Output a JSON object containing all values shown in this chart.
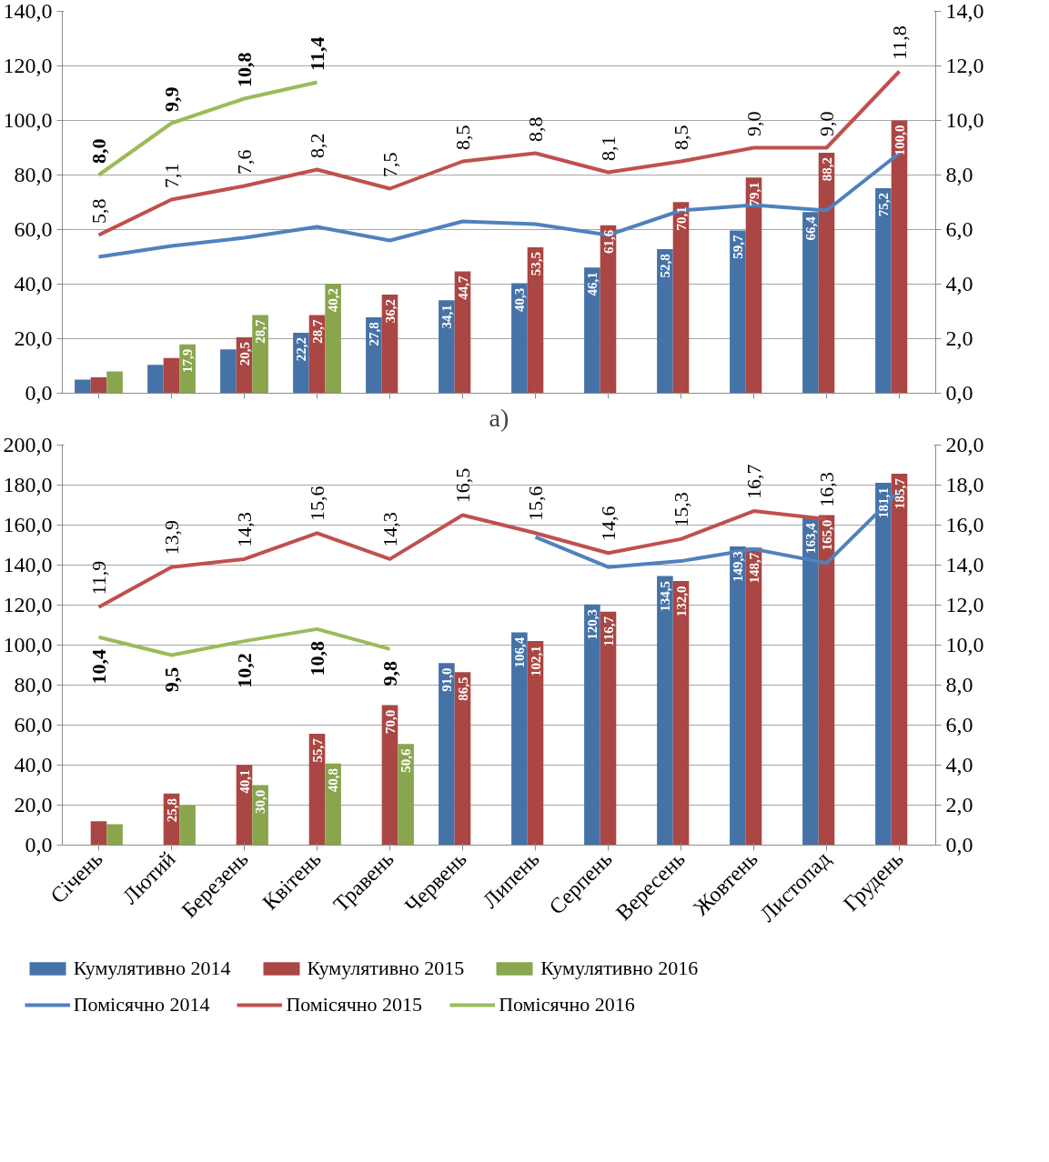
{
  "chart_data": [
    {
      "type": "bar",
      "xlabel": "a)",
      "categories": [
        null,
        null,
        null,
        null,
        null,
        null,
        null,
        null,
        null,
        null,
        null,
        null
      ],
      "tick_labels": "y",
      "grid": "y",
      "ylim": [
        0,
        140
      ],
      "yticks": [
        {
          "value": 0,
          "label": "0,0"
        },
        {
          "value": 20,
          "label": "20,0"
        },
        {
          "value": 40,
          "label": "40,0"
        },
        {
          "value": 60,
          "label": "60,0"
        },
        {
          "value": 80,
          "label": "80,0"
        },
        {
          "value": 100,
          "label": "100,0"
        },
        {
          "value": 120,
          "label": "120,0"
        },
        {
          "value": 140,
          "label": "140,0"
        }
      ],
      "y2lim": [
        0,
        14
      ],
      "y2ticks": [
        {
          "value": 0,
          "label": "0,0"
        },
        {
          "value": 2,
          "label": "2,0"
        },
        {
          "value": 4,
          "label": "4,0"
        },
        {
          "value": 6,
          "label": "6,0"
        },
        {
          "value": 8,
          "label": "8,0"
        },
        {
          "value": 10,
          "label": "10,0"
        },
        {
          "value": 12,
          "label": "12,0"
        },
        {
          "value": 14,
          "label": "14,0"
        }
      ],
      "series": [
        {
          "color": "#4572a7",
          "values": [
            5.0,
            10.4,
            16.1,
            22.2,
            27.8,
            34.1,
            40.3,
            46.1,
            52.8,
            59.7,
            66.4,
            75.2
          ],
          "value_labels": [
            null,
            null,
            null,
            "22,2",
            "27,8",
            "34,1",
            "40,3",
            "46,1",
            "52,8",
            "59,7",
            "66,4",
            "75,2"
          ]
        },
        {
          "color": "#aa4643",
          "values": [
            5.8,
            12.9,
            20.5,
            28.7,
            36.2,
            44.7,
            53.5,
            61.6,
            70.1,
            79.1,
            88.2,
            100.0
          ],
          "value_labels": [
            null,
            null,
            "20,5",
            "28,7",
            "36,2",
            "44,7",
            "53,5",
            "61,6",
            "70,1",
            "79,1",
            "88,2",
            "100,0"
          ]
        },
        {
          "color": "#89a54e",
          "values": [
            8.0,
            17.9,
            28.7,
            40.2,
            null,
            null,
            null,
            null,
            null,
            null,
            null,
            null
          ],
          "value_labels": [
            null,
            "17,9",
            "28,7",
            "40,2",
            null,
            null,
            null,
            null,
            null,
            null,
            null,
            null
          ]
        },
        {
          "type": "line",
          "axis": "y2",
          "color": "#4f81bd",
          "values": [
            5.0,
            5.4,
            5.7,
            6.1,
            5.6,
            6.3,
            6.2,
            5.8,
            6.7,
            6.9,
            6.7,
            8.8
          ]
        },
        {
          "type": "line",
          "axis": "y2",
          "color": "#c0504d",
          "values": [
            5.8,
            7.1,
            7.6,
            8.2,
            7.5,
            8.5,
            8.8,
            8.1,
            8.5,
            9.0,
            9.0,
            11.8
          ],
          "value_labels": [
            "5,8",
            "7,1",
            "7,6",
            "8,2",
            "7,5",
            "8,5",
            "8,8",
            "8,1",
            "8,5",
            "9,0",
            "9,0",
            "11,8"
          ]
        },
        {
          "type": "line",
          "axis": "y2",
          "color": "#9bbb59",
          "values": [
            8.0,
            9.9,
            10.8,
            11.4,
            null,
            null,
            null,
            null,
            null,
            null,
            null,
            null
          ],
          "value_labels": [
            "8,0",
            "9,9",
            "10,8",
            "11,4",
            null,
            null,
            null,
            null,
            null,
            null,
            null,
            null
          ]
        }
      ]
    },
    {
      "type": "bar",
      "categories": [
        "Січень",
        "Лютий",
        "Березень",
        "Квітень",
        "Травень",
        "Червень",
        "Липень",
        "Серпень",
        "Вересень",
        "Жовтень",
        "Листопад",
        "Грудень"
      ],
      "grid": "y",
      "legend": "bottom",
      "ylim": [
        0,
        200
      ],
      "yticks": [
        {
          "value": 0,
          "label": "0,0"
        },
        {
          "value": 20,
          "label": "20,0"
        },
        {
          "value": 40,
          "label": "40,0"
        },
        {
          "value": 60,
          "label": "60,0"
        },
        {
          "value": 80,
          "label": "80,0"
        },
        {
          "value": 100,
          "label": "100,0"
        },
        {
          "value": 120,
          "label": "120,0"
        },
        {
          "value": 140,
          "label": "140,0"
        },
        {
          "value": 160,
          "label": "160,0"
        },
        {
          "value": 180,
          "label": "180,0"
        },
        {
          "value": 200,
          "label": "200,0"
        }
      ],
      "y2lim": [
        0,
        20
      ],
      "y2ticks": [
        {
          "value": 0,
          "label": "0,0"
        },
        {
          "value": 2,
          "label": "2,0"
        },
        {
          "value": 4,
          "label": "4,0"
        },
        {
          "value": 6,
          "label": "6,0"
        },
        {
          "value": 8,
          "label": "8,0"
        },
        {
          "value": 10,
          "label": "10,0"
        },
        {
          "value": 12,
          "label": "12,0"
        },
        {
          "value": 14,
          "label": "14,0"
        },
        {
          "value": 16,
          "label": "16,0"
        },
        {
          "value": 18,
          "label": "18,0"
        },
        {
          "value": 20,
          "label": "20,0"
        }
      ],
      "series": [
        {
          "name": "Кумулятивно 2014",
          "color": "#4572a7",
          "values": [
            null,
            null,
            null,
            null,
            null,
            91.0,
            106.4,
            120.3,
            134.5,
            149.3,
            163.4,
            181.1
          ],
          "value_labels": [
            null,
            null,
            null,
            null,
            null,
            "91,0",
            "106,4",
            "120,3",
            "134,5",
            "149,3",
            "163,4",
            "181,1"
          ]
        },
        {
          "name": "Кумулятивно 2015",
          "color": "#aa4643",
          "values": [
            11.9,
            25.8,
            40.1,
            55.7,
            70.0,
            86.5,
            102.1,
            116.7,
            132.0,
            148.7,
            165.0,
            185.7
          ],
          "value_labels": [
            null,
            "25,8",
            "40,1",
            "55,7",
            "70,0",
            "86,5",
            "102,1",
            "116,7",
            "132,0",
            "148,7",
            "165,0",
            "185,7"
          ]
        },
        {
          "name": "Кумулятивно 2016",
          "color": "#89a54e",
          "values": [
            10.4,
            19.9,
            30.0,
            40.8,
            50.6,
            null,
            null,
            null,
            null,
            null,
            null,
            null
          ],
          "value_labels": [
            null,
            null,
            "30,0",
            "40,8",
            "50,6",
            null,
            null,
            null,
            null,
            null,
            null,
            null
          ]
        },
        {
          "type": "line",
          "axis": "y2",
          "name": "Помісячно 2014",
          "color": "#4f81bd",
          "values": [
            null,
            null,
            null,
            null,
            null,
            null,
            15.4,
            13.9,
            14.2,
            14.8,
            14.1,
            17.7
          ]
        },
        {
          "type": "line",
          "axis": "y2",
          "name": "Помісячно 2015",
          "color": "#c0504d",
          "values": [
            11.9,
            13.9,
            14.3,
            15.6,
            14.3,
            16.5,
            15.6,
            14.6,
            15.3,
            16.7,
            16.3,
            null
          ],
          "value_labels": [
            "11,9",
            "13,9",
            "14,3",
            "15,6",
            "14,3",
            "16,5",
            "15,6",
            "14,6",
            "15,3",
            "16,7",
            "16,3",
            null
          ]
        },
        {
          "type": "line",
          "axis": "y2",
          "name": "Помісячно 2016",
          "color": "#9bbb59",
          "values": [
            10.4,
            9.5,
            10.2,
            10.8,
            9.8,
            null,
            null,
            null,
            null,
            null,
            null,
            null
          ],
          "value_labels": [
            "10,4",
            "9,5",
            "10,2",
            "10,8",
            "9,8",
            null,
            null,
            null,
            null,
            null,
            null,
            null
          ]
        }
      ]
    }
  ]
}
